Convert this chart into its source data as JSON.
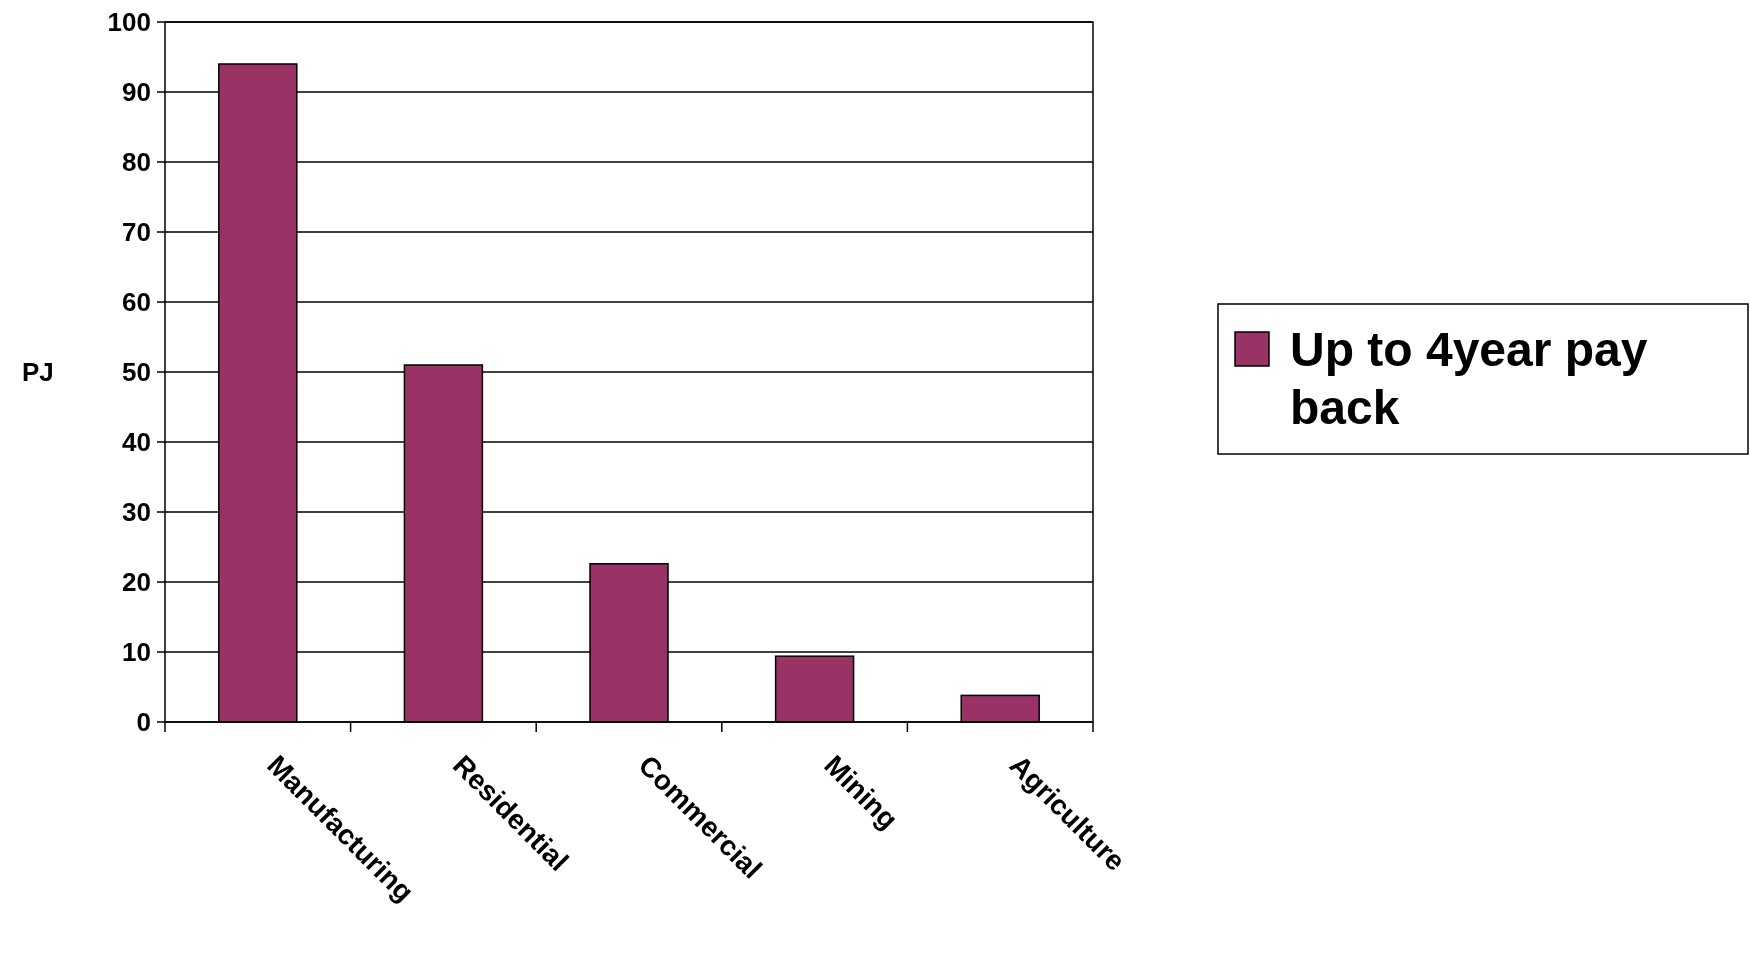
{
  "chart_data": {
    "type": "bar",
    "ylabel": "PJ",
    "categories": [
      "Manufacturing",
      "Residential",
      "Commercial",
      "Mining",
      "Agriculture"
    ],
    "series": [
      {
        "name": "Up to 4year pay back",
        "color": "#993366",
        "values": [
          94,
          51,
          22.6,
          9.4,
          3.8
        ]
      }
    ],
    "ylim": [
      0,
      100
    ],
    "yticks": [
      0,
      10,
      20,
      30,
      40,
      50,
      60,
      70,
      80,
      90,
      100
    ],
    "grid": "y",
    "legend": "right"
  }
}
